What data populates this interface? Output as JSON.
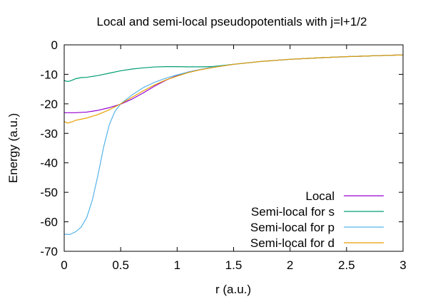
{
  "chart_data": {
    "type": "line",
    "title": "Local and semi-local pseudopotentials with j=l+1/2",
    "xlabel": "r (a.u.)",
    "ylabel": "Energy (a.u.)",
    "xlim": [
      0,
      3
    ],
    "ylim": [
      -70,
      0
    ],
    "xticks": [
      0,
      0.5,
      1,
      1.5,
      2,
      2.5,
      3
    ],
    "xtick_labels": [
      "0",
      "0.5",
      "1",
      "1.5",
      "2",
      "2.5",
      "3"
    ],
    "yticks": [
      0,
      -10,
      -20,
      -30,
      -40,
      -50,
      -60,
      -70
    ],
    "ytick_labels": [
      "0",
      "-10",
      "-20",
      "-30",
      "-40",
      "-50",
      "-60",
      "-70"
    ],
    "grid": false,
    "legend_position": "bottom-right",
    "series": [
      {
        "name": "Local",
        "color": "#9400d3",
        "x": [
          0,
          0.1,
          0.2,
          0.3,
          0.4,
          0.5,
          0.6,
          0.7,
          0.8,
          0.9,
          1.0,
          1.1,
          1.2,
          1.3,
          1.5,
          1.75,
          2.0,
          2.25,
          2.5,
          2.75,
          3.0
        ],
        "y": [
          -23,
          -23,
          -22.8,
          -22.2,
          -21.3,
          -20.1,
          -18.4,
          -16.3,
          -14,
          -12,
          -10.4,
          -9.2,
          -8.4,
          -7.7,
          -6.6,
          -5.6,
          -4.9,
          -4.4,
          -4.0,
          -3.7,
          -3.4
        ]
      },
      {
        "name": "Semi-local for s",
        "color": "#009e73",
        "x": [
          0,
          0.02,
          0.05,
          0.1,
          0.15,
          0.2,
          0.3,
          0.4,
          0.5,
          0.6,
          0.7,
          0.8,
          0.9,
          1.0,
          1.1,
          1.2,
          1.3,
          1.5,
          1.75,
          2.0,
          2.25,
          2.5,
          2.75,
          3.0
        ],
        "y": [
          -12,
          -12.4,
          -12.3,
          -11.5,
          -11.1,
          -11,
          -10.4,
          -9.6,
          -8.8,
          -8.2,
          -7.8,
          -7.5,
          -7.4,
          -7.4,
          -7.45,
          -7.45,
          -7.4,
          -6.6,
          -5.6,
          -4.9,
          -4.4,
          -4.0,
          -3.7,
          -3.4
        ]
      },
      {
        "name": "Semi-local for p",
        "color": "#56b4e9",
        "x": [
          0,
          0.05,
          0.1,
          0.15,
          0.2,
          0.25,
          0.3,
          0.35,
          0.4,
          0.45,
          0.5,
          0.6,
          0.7,
          0.8,
          0.9,
          1.0,
          1.1,
          1.2,
          1.3,
          1.5,
          1.75,
          2.0,
          2.25,
          2.5,
          2.75,
          3.0
        ],
        "y": [
          -64.2,
          -64.3,
          -63.4,
          -61.8,
          -58.5,
          -52.5,
          -44,
          -34.5,
          -27,
          -22.5,
          -20,
          -17,
          -14.5,
          -12.7,
          -11.3,
          -10.2,
          -9.2,
          -8.4,
          -7.7,
          -6.6,
          -5.6,
          -4.9,
          -4.4,
          -4.0,
          -3.7,
          -3.4
        ]
      },
      {
        "name": "Semi-local for d",
        "color": "#e69f00",
        "x": [
          0,
          0.03,
          0.07,
          0.1,
          0.2,
          0.3,
          0.4,
          0.5,
          0.6,
          0.7,
          0.8,
          0.9,
          1.0,
          1.1,
          1.2,
          1.3,
          1.5,
          1.75,
          2.0,
          2.25,
          2.5,
          2.75,
          3.0
        ],
        "y": [
          -26,
          -26.5,
          -26.1,
          -25.6,
          -24.8,
          -23.6,
          -22,
          -20,
          -17.8,
          -15.6,
          -13.6,
          -11.9,
          -10.6,
          -9.4,
          -8.5,
          -7.8,
          -6.6,
          -5.6,
          -4.9,
          -4.4,
          -4.0,
          -3.7,
          -3.4
        ]
      }
    ]
  }
}
